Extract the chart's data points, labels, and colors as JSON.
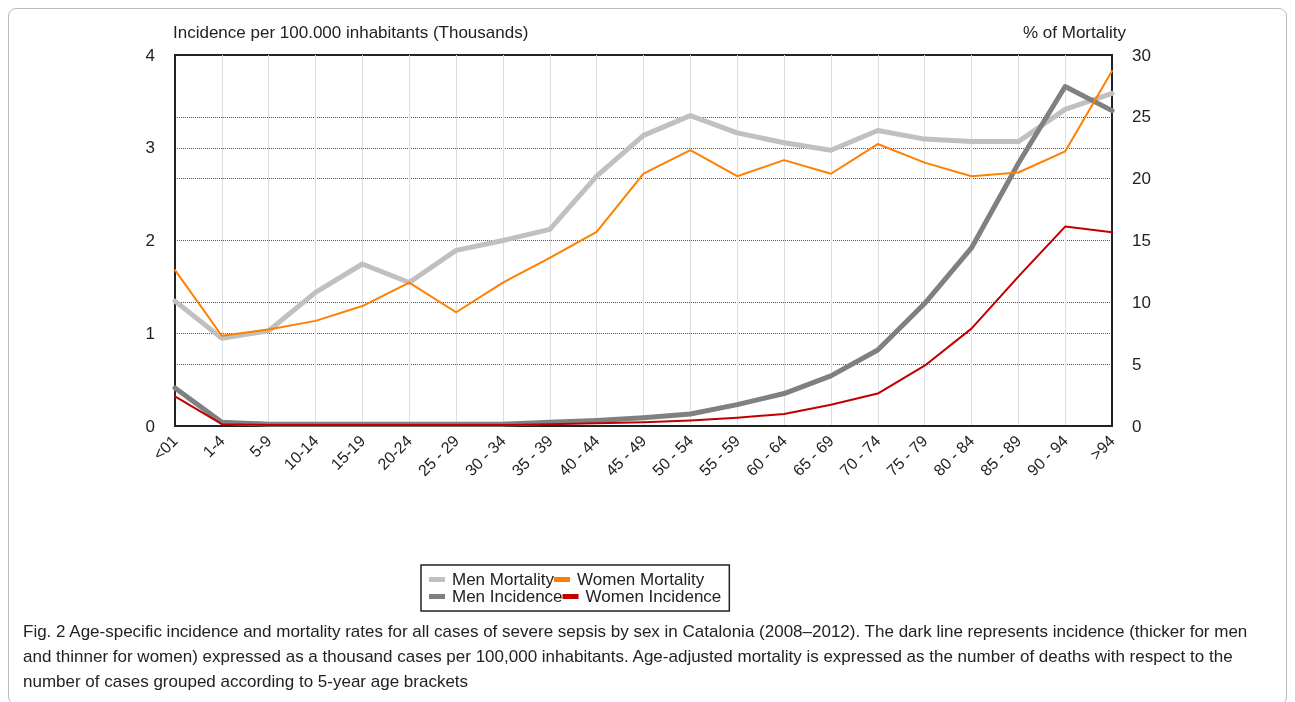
{
  "chart_data": {
    "type": "line",
    "ylabel": "Incidence per 100.000 inhabitants (Thousands)",
    "y2label": "% of Mortality",
    "categories": [
      "<01",
      "1-4",
      "5-9",
      "10-14",
      "15-19",
      "20-24",
      "25 - 29",
      "30 - 34",
      "35 - 39",
      "40 - 44",
      "45 - 49",
      "50 - 54",
      "55 - 59",
      "60 - 64",
      "65 - 69",
      "70 - 74",
      "75 - 79",
      "80 - 84",
      "85 - 89",
      "90 - 94",
      ">94"
    ],
    "series": [
      {
        "name": "Men Mortality",
        "color": "#c0c0c0",
        "axis": "y2",
        "values": [
          10.1,
          7.1,
          7.7,
          10.8,
          13.1,
          11.6,
          14.2,
          15.0,
          15.9,
          20.2,
          23.5,
          25.1,
          23.7,
          22.9,
          22.3,
          23.9,
          23.2,
          23.0,
          23.0,
          25.6,
          26.9
        ]
      },
      {
        "name": "Women Mortality",
        "color": "#ff7f00",
        "axis": "y2",
        "values": [
          12.6,
          7.3,
          7.8,
          8.5,
          9.7,
          11.6,
          9.2,
          11.6,
          13.6,
          15.7,
          20.4,
          22.3,
          20.2,
          21.5,
          20.4,
          22.8,
          21.3,
          20.2,
          20.5,
          22.2,
          28.7
        ]
      },
      {
        "name": "Men Incidence",
        "color": "#808080",
        "values": [
          0.41,
          0.04,
          0.02,
          0.02,
          0.02,
          0.02,
          0.02,
          0.02,
          0.04,
          0.06,
          0.09,
          0.13,
          0.23,
          0.35,
          0.54,
          0.82,
          1.32,
          1.92,
          2.83,
          3.66,
          3.4
        ]
      },
      {
        "name": "Women Incidence",
        "color": "#c00000",
        "values": [
          0.32,
          0.02,
          0.01,
          0.01,
          0.01,
          0.01,
          0.01,
          0.01,
          0.02,
          0.03,
          0.04,
          0.06,
          0.09,
          0.13,
          0.23,
          0.35,
          0.65,
          1.05,
          1.61,
          2.15,
          2.09
        ]
      }
    ],
    "ylim": [
      0,
      4
    ],
    "yticks": [
      0,
      1,
      2,
      3,
      4
    ],
    "y2lim": [
      0,
      30
    ],
    "y2ticks": [
      0,
      5,
      10,
      15,
      20,
      25,
      30
    ],
    "grid": true,
    "legend": "bottom",
    "marker": "none",
    "line_style": "solid",
    "annotations": [
      "Fig. 2  Age-specific incidence and mortality rates for all cases of severe sepsis by sex in Catalonia (2008–2012). The dark line represents incidence (thicker for men and thinner for women) expressed as a thousand cases per 100,000 inhabitants. Age-adjusted mortality is expressed as the number of deaths with respect to the number of cases grouped according to 5-year age brackets"
    ]
  }
}
